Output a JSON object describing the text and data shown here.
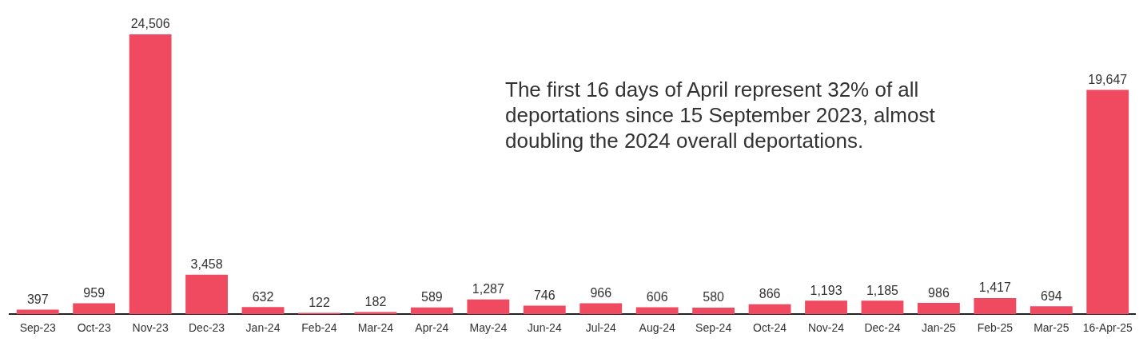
{
  "chart_data": {
    "type": "bar",
    "categories": [
      "Sep-23",
      "Oct-23",
      "Nov-23",
      "Dec-23",
      "Jan-24",
      "Feb-24",
      "Mar-24",
      "Apr-24",
      "May-24",
      "Jun-24",
      "Jul-24",
      "Aug-24",
      "Sep-24",
      "Oct-24",
      "Nov-24",
      "Dec-24",
      "Jan-25",
      "Feb-25",
      "Mar-25",
      "16-Apr-25"
    ],
    "values": [
      397,
      959,
      24506,
      3458,
      632,
      122,
      182,
      589,
      1287,
      746,
      966,
      606,
      580,
      866,
      1193,
      1185,
      986,
      1417,
      694,
      19647
    ],
    "color": "#ef4a60",
    "value_labels": [
      "397",
      "959",
      "24,506",
      "3,458",
      "632",
      "122",
      "182",
      "589",
      "1,287",
      "746",
      "966",
      "606",
      "580",
      "866",
      "1,193",
      "1,185",
      "986",
      "1,417",
      "694",
      "19,647"
    ],
    "grid": false,
    "legend": false,
    "annotations": [
      "The first 16 days of April represent 32% of all deportations since 15 September 2023, almost doubling the 2024 overall deportations."
    ]
  }
}
